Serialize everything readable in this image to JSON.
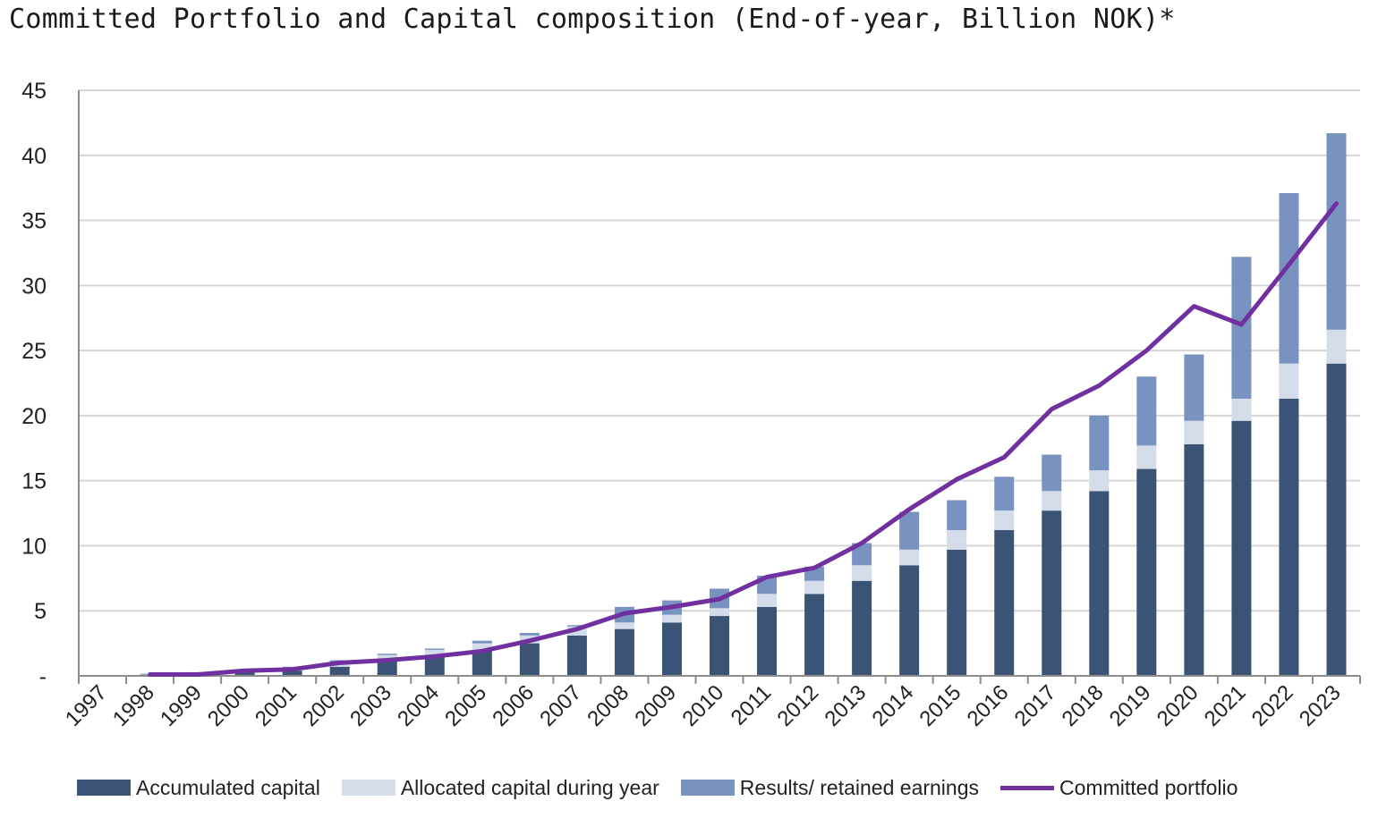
{
  "chart_data": {
    "type": "bar",
    "stacked": true,
    "title": "Committed Portfolio and Capital composition (End-of-year, Billion NOK)*",
    "categories": [
      "1997",
      "1998",
      "1999",
      "2000",
      "2001",
      "2002",
      "2003",
      "2004",
      "2005",
      "2006",
      "2007",
      "2008",
      "2009",
      "2010",
      "2011",
      "2012",
      "2013",
      "2014",
      "2015",
      "2016",
      "2017",
      "2018",
      "2019",
      "2020",
      "2021",
      "2022",
      "2023"
    ],
    "ylim": [
      0,
      45
    ],
    "yticks": [
      0,
      5,
      10,
      15,
      20,
      25,
      30,
      35,
      40,
      45
    ],
    "ytick_labels": [
      "-",
      "5",
      "10",
      "15",
      "20",
      "25",
      "30",
      "35",
      "40",
      "45"
    ],
    "grid": true,
    "legend_position": "bottom",
    "series": [
      {
        "name": "Accumulated capital",
        "type": "bar",
        "color": "#3b5475",
        "values": [
          0,
          0.1,
          0.2,
          0.3,
          0.4,
          0.7,
          1.2,
          1.6,
          1.9,
          2.5,
          3.1,
          3.6,
          4.1,
          4.6,
          5.3,
          6.3,
          7.3,
          8.5,
          9.7,
          11.2,
          12.7,
          14.2,
          15.9,
          17.8,
          19.6,
          21.3,
          24.0
        ]
      },
      {
        "name": "Allocated capital during year",
        "type": "bar",
        "color": "#d4dcea",
        "values": [
          0,
          0.1,
          0.1,
          0.2,
          0.2,
          0.3,
          0.4,
          0.4,
          0.6,
          0.6,
          0.7,
          0.5,
          0.6,
          0.6,
          1.0,
          1.0,
          1.2,
          1.2,
          1.5,
          1.5,
          1.5,
          1.6,
          1.8,
          1.8,
          1.7,
          2.7,
          2.6
        ]
      },
      {
        "name": "Results/ retained earnings",
        "type": "bar",
        "color": "#7893bf",
        "values": [
          0,
          0,
          0,
          0,
          0.1,
          0.2,
          0.1,
          0.1,
          0.2,
          0.2,
          0.1,
          1.2,
          1.1,
          1.5,
          1.4,
          1.1,
          1.7,
          2.9,
          2.3,
          2.6,
          2.8,
          4.2,
          5.3,
          5.1,
          10.9,
          13.1,
          15.1
        ]
      },
      {
        "name": "Committed portfolio",
        "type": "line",
        "color": "#7030a0",
        "values": [
          null,
          0.1,
          0.1,
          0.4,
          0.5,
          1.0,
          1.2,
          1.5,
          1.9,
          2.7,
          3.6,
          4.8,
          5.3,
          5.9,
          7.6,
          8.3,
          10.2,
          12.8,
          15.1,
          16.8,
          20.5,
          22.3,
          25.0,
          28.4,
          27.0,
          31.6,
          36.3
        ]
      }
    ]
  }
}
